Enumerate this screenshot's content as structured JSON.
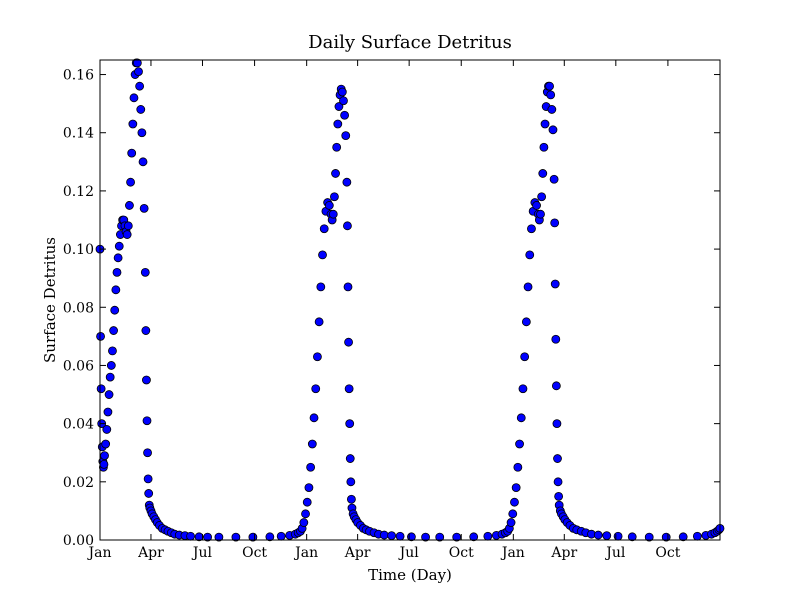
{
  "chart_data": {
    "type": "scatter",
    "title": "Daily Surface Detritus",
    "xlabel": "Time (Day)",
    "ylabel": "Surface Detritus",
    "ylim": [
      0,
      0.165
    ],
    "xlim_days": [
      0,
      1095
    ],
    "grid": false,
    "legend": "none",
    "marker_color": "#0000ff",
    "marker_edge_color": "#000000",
    "yticks": [
      0.0,
      0.02,
      0.04,
      0.06,
      0.08,
      0.1,
      0.12,
      0.14,
      0.16
    ],
    "ytick_labels": [
      "0.00",
      "0.02",
      "0.04",
      "0.06",
      "0.08",
      "0.10",
      "0.12",
      "0.14",
      "0.16"
    ],
    "xticks": [
      0,
      90,
      181,
      273,
      365,
      455,
      546,
      638,
      730,
      820,
      911,
      1003
    ],
    "xtick_labels": [
      "Jan",
      "Apr",
      "Jul",
      "Oct",
      "Jan",
      "Apr",
      "Jul",
      "Oct",
      "Jan",
      "Apr",
      "Jul",
      "Oct"
    ],
    "series": [
      {
        "points": [
          [
            0,
            0.1
          ],
          [
            1,
            0.07
          ],
          [
            2,
            0.052
          ],
          [
            3,
            0.04
          ],
          [
            4,
            0.032
          ],
          [
            5,
            0.027
          ],
          [
            6,
            0.025
          ],
          [
            7,
            0.026
          ],
          [
            8,
            0.029
          ],
          [
            10,
            0.033
          ],
          [
            12,
            0.038
          ],
          [
            14,
            0.044
          ],
          [
            16,
            0.05
          ],
          [
            18,
            0.056
          ],
          [
            20,
            0.06
          ],
          [
            22,
            0.065
          ],
          [
            24,
            0.072
          ],
          [
            26,
            0.079
          ],
          [
            28,
            0.086
          ],
          [
            30,
            0.092
          ],
          [
            32,
            0.097
          ],
          [
            34,
            0.101
          ],
          [
            36,
            0.105
          ],
          [
            38,
            0.108
          ],
          [
            40,
            0.11
          ],
          [
            42,
            0.11
          ],
          [
            44,
            0.108
          ],
          [
            46,
            0.106
          ],
          [
            48,
            0.105
          ],
          [
            50,
            0.108
          ],
          [
            52,
            0.115
          ],
          [
            54,
            0.123
          ],
          [
            56,
            0.133
          ],
          [
            58,
            0.143
          ],
          [
            60,
            0.152
          ],
          [
            62,
            0.16
          ],
          [
            64,
            0.164
          ],
          [
            66,
            0.164
          ],
          [
            68,
            0.161
          ],
          [
            70,
            0.156
          ],
          [
            72,
            0.148
          ],
          [
            74,
            0.14
          ],
          [
            76,
            0.13
          ],
          [
            78,
            0.114
          ],
          [
            80,
            0.092
          ],
          [
            81,
            0.072
          ],
          [
            82,
            0.055
          ],
          [
            83,
            0.041
          ],
          [
            84,
            0.03
          ],
          [
            85,
            0.021
          ],
          [
            86,
            0.016
          ],
          [
            87,
            0.012
          ],
          [
            88,
            0.011
          ],
          [
            90,
            0.01
          ],
          [
            92,
            0.009
          ],
          [
            95,
            0.008
          ],
          [
            98,
            0.007
          ],
          [
            101,
            0.006
          ],
          [
            105,
            0.005
          ],
          [
            110,
            0.004
          ],
          [
            115,
            0.0035
          ],
          [
            120,
            0.003
          ],
          [
            126,
            0.0025
          ],
          [
            132,
            0.002
          ],
          [
            140,
            0.0017
          ],
          [
            150,
            0.0015
          ],
          [
            160,
            0.0013
          ],
          [
            175,
            0.0011
          ],
          [
            190,
            0.001
          ],
          [
            210,
            0.001
          ],
          [
            240,
            0.001
          ],
          [
            270,
            0.001
          ],
          [
            300,
            0.0011
          ],
          [
            320,
            0.0013
          ],
          [
            335,
            0.0016
          ],
          [
            345,
            0.002
          ],
          [
            350,
            0.0025
          ],
          [
            354,
            0.003
          ],
          [
            357,
            0.004
          ],
          [
            360,
            0.006
          ],
          [
            363,
            0.009
          ],
          [
            366,
            0.013
          ],
          [
            369,
            0.018
          ],
          [
            372,
            0.025
          ],
          [
            375,
            0.033
          ],
          [
            378,
            0.042
          ],
          [
            381,
            0.052
          ],
          [
            384,
            0.063
          ],
          [
            387,
            0.075
          ],
          [
            390,
            0.087
          ],
          [
            393,
            0.098
          ],
          [
            396,
            0.107
          ],
          [
            399,
            0.113
          ],
          [
            402,
            0.116
          ],
          [
            405,
            0.115
          ],
          [
            408,
            0.112
          ],
          [
            410,
            0.11
          ],
          [
            412,
            0.112
          ],
          [
            414,
            0.118
          ],
          [
            416,
            0.126
          ],
          [
            418,
            0.135
          ],
          [
            420,
            0.143
          ],
          [
            422,
            0.149
          ],
          [
            424,
            0.153
          ],
          [
            426,
            0.155
          ],
          [
            428,
            0.154
          ],
          [
            430,
            0.151
          ],
          [
            432,
            0.146
          ],
          [
            434,
            0.139
          ],
          [
            436,
            0.123
          ],
          [
            437,
            0.108
          ],
          [
            438,
            0.087
          ],
          [
            439,
            0.068
          ],
          [
            440,
            0.052
          ],
          [
            441,
            0.04
          ],
          [
            442,
            0.028
          ],
          [
            443,
            0.02
          ],
          [
            444,
            0.014
          ],
          [
            445,
            0.011
          ],
          [
            447,
            0.009
          ],
          [
            449,
            0.008
          ],
          [
            452,
            0.007
          ],
          [
            455,
            0.006
          ],
          [
            460,
            0.005
          ],
          [
            465,
            0.004
          ],
          [
            470,
            0.0035
          ],
          [
            476,
            0.003
          ],
          [
            484,
            0.0025
          ],
          [
            492,
            0.002
          ],
          [
            502,
            0.0017
          ],
          [
            515,
            0.0015
          ],
          [
            530,
            0.0013
          ],
          [
            550,
            0.0011
          ],
          [
            575,
            0.001
          ],
          [
            600,
            0.001
          ],
          [
            630,
            0.001
          ],
          [
            660,
            0.0011
          ],
          [
            685,
            0.0013
          ],
          [
            700,
            0.0016
          ],
          [
            710,
            0.002
          ],
          [
            716,
            0.0025
          ],
          [
            720,
            0.003
          ],
          [
            723,
            0.004
          ],
          [
            726,
            0.006
          ],
          [
            729,
            0.009
          ],
          [
            732,
            0.013
          ],
          [
            735,
            0.018
          ],
          [
            738,
            0.025
          ],
          [
            741,
            0.033
          ],
          [
            744,
            0.042
          ],
          [
            747,
            0.052
          ],
          [
            750,
            0.063
          ],
          [
            753,
            0.075
          ],
          [
            756,
            0.087
          ],
          [
            759,
            0.098
          ],
          [
            762,
            0.107
          ],
          [
            765,
            0.113
          ],
          [
            768,
            0.116
          ],
          [
            771,
            0.115
          ],
          [
            774,
            0.112
          ],
          [
            776,
            0.11
          ],
          [
            778,
            0.112
          ],
          [
            780,
            0.118
          ],
          [
            782,
            0.126
          ],
          [
            784,
            0.135
          ],
          [
            786,
            0.143
          ],
          [
            788,
            0.149
          ],
          [
            790,
            0.154
          ],
          [
            792,
            0.156
          ],
          [
            794,
            0.156
          ],
          [
            796,
            0.153
          ],
          [
            798,
            0.148
          ],
          [
            800,
            0.141
          ],
          [
            802,
            0.124
          ],
          [
            803,
            0.109
          ],
          [
            804,
            0.088
          ],
          [
            805,
            0.069
          ],
          [
            806,
            0.053
          ],
          [
            807,
            0.04
          ],
          [
            808,
            0.028
          ],
          [
            809,
            0.02
          ],
          [
            810,
            0.015
          ],
          [
            811,
            0.012
          ],
          [
            813,
            0.01
          ],
          [
            815,
            0.009
          ],
          [
            818,
            0.008
          ],
          [
            821,
            0.007
          ],
          [
            825,
            0.006
          ],
          [
            830,
            0.005
          ],
          [
            836,
            0.004
          ],
          [
            842,
            0.0035
          ],
          [
            850,
            0.003
          ],
          [
            858,
            0.0025
          ],
          [
            868,
            0.002
          ],
          [
            880,
            0.0017
          ],
          [
            895,
            0.0015
          ],
          [
            915,
            0.0013
          ],
          [
            940,
            0.0011
          ],
          [
            970,
            0.001
          ],
          [
            1000,
            0.001
          ],
          [
            1030,
            0.0011
          ],
          [
            1055,
            0.0013
          ],
          [
            1070,
            0.0016
          ],
          [
            1080,
            0.002
          ],
          [
            1086,
            0.0025
          ],
          [
            1090,
            0.003
          ],
          [
            1093,
            0.0035
          ],
          [
            1095,
            0.004
          ]
        ]
      }
    ]
  }
}
